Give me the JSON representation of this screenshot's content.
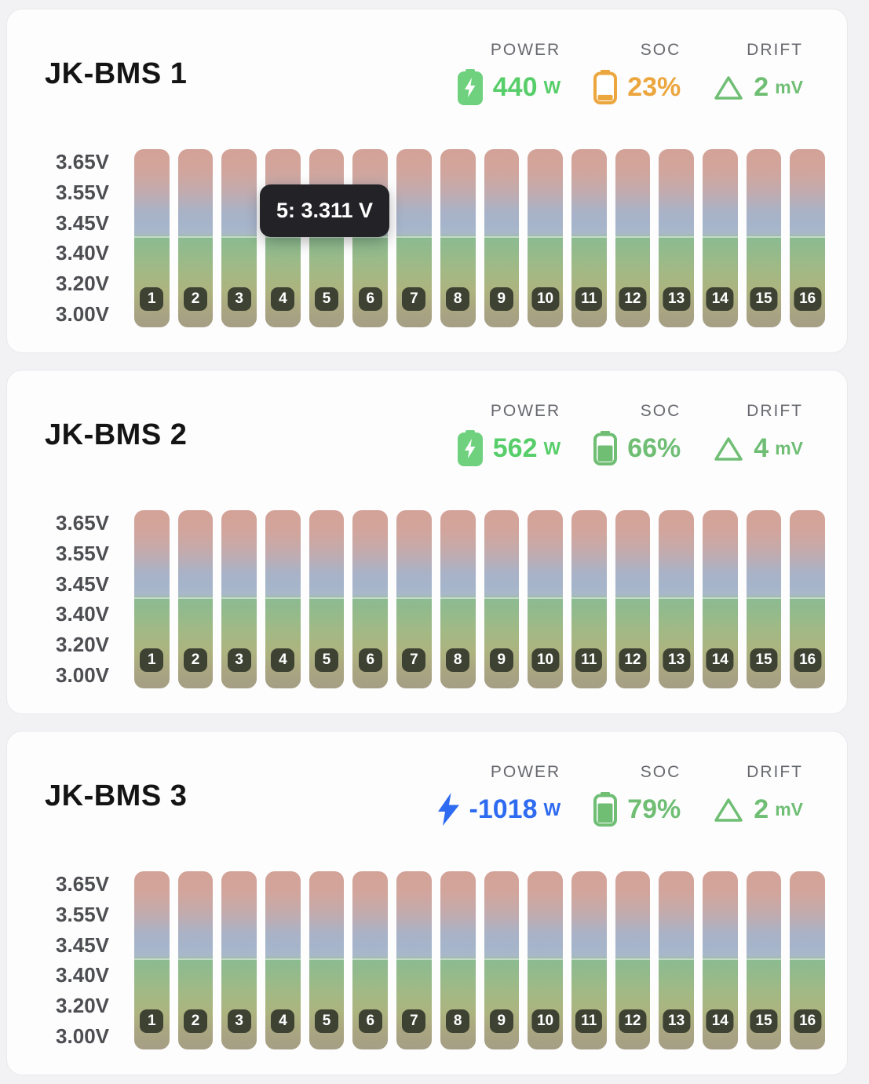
{
  "page": {
    "background": "#f2f2f4"
  },
  "cards": [
    {
      "title": "JK-BMS 1",
      "stats": {
        "power": {
          "label": "POWER",
          "value": "440",
          "unit": "W",
          "color": "#57ce69",
          "icon": "battery-charging",
          "icon_color": "#6fd17e"
        },
        "soc": {
          "label": "SOC",
          "value": "23%",
          "color": "#eca63e",
          "icon": "battery-level",
          "level": 0.23
        },
        "drift": {
          "label": "DRIFT",
          "value": "2",
          "unit": "mV",
          "color": "#6fbe74",
          "icon": "triangle-outline"
        }
      },
      "tooltip": {
        "text": "5: 3.311 V"
      },
      "chart": {
        "y_ticks": [
          "3.65V",
          "3.55V",
          "3.45V",
          "3.40V",
          "3.20V",
          "3.00V"
        ],
        "cells": [
          1,
          2,
          3,
          4,
          5,
          6,
          7,
          8,
          9,
          10,
          11,
          12,
          13,
          14,
          15,
          16
        ],
        "fill_percent": 48.8
      }
    },
    {
      "title": "JK-BMS 2",
      "stats": {
        "power": {
          "label": "POWER",
          "value": "562",
          "unit": "W",
          "color": "#57ce69",
          "icon": "battery-charging",
          "icon_color": "#6fd17e"
        },
        "soc": {
          "label": "SOC",
          "value": "66%",
          "color": "#6fbe74",
          "icon": "battery-level",
          "level": 0.66
        },
        "drift": {
          "label": "DRIFT",
          "value": "4",
          "unit": "mV",
          "color": "#6fbe74",
          "icon": "triangle-outline"
        }
      },
      "chart": {
        "y_ticks": [
          "3.65V",
          "3.55V",
          "3.45V",
          "3.40V",
          "3.20V",
          "3.00V"
        ],
        "cells": [
          1,
          2,
          3,
          4,
          5,
          6,
          7,
          8,
          9,
          10,
          11,
          12,
          13,
          14,
          15,
          16
        ],
        "fill_percent": 48.8
      }
    },
    {
      "title": "JK-BMS 3",
      "stats": {
        "power": {
          "label": "POWER",
          "value": "-1018",
          "unit": "W",
          "color": "#2e6bf0",
          "icon": "lightning-bolt",
          "icon_color": "#2e6bf0"
        },
        "soc": {
          "label": "SOC",
          "value": "79%",
          "color": "#6fbe74",
          "icon": "battery-level",
          "level": 0.79
        },
        "drift": {
          "label": "DRIFT",
          "value": "2",
          "unit": "mV",
          "color": "#6fbe74",
          "icon": "triangle-outline"
        }
      },
      "chart": {
        "y_ticks": [
          "3.65V",
          "3.55V",
          "3.45V",
          "3.40V",
          "3.20V",
          "3.00V"
        ],
        "cells": [
          1,
          2,
          3,
          4,
          5,
          6,
          7,
          8,
          9,
          10,
          11,
          12,
          13,
          14,
          15,
          16
        ],
        "fill_percent": 48.8
      }
    }
  ],
  "chart_data": [
    {
      "type": "bar",
      "title": "JK-BMS 1 cell voltages",
      "categories": [
        1,
        2,
        3,
        4,
        5,
        6,
        7,
        8,
        9,
        10,
        11,
        12,
        13,
        14,
        15,
        16
      ],
      "values": [
        3.31,
        3.31,
        3.31,
        3.31,
        3.311,
        3.31,
        3.31,
        3.31,
        3.31,
        3.31,
        3.31,
        3.31,
        3.31,
        3.31,
        3.31,
        3.31
      ],
      "y_tick_labels": [
        "3.65V",
        "3.55V",
        "3.45V",
        "3.40V",
        "3.20V",
        "3.00V"
      ],
      "ylim": [
        3.0,
        3.7
      ],
      "annotations": [
        "5: 3.311 V"
      ]
    },
    {
      "type": "bar",
      "title": "JK-BMS 2 cell voltages",
      "categories": [
        1,
        2,
        3,
        4,
        5,
        6,
        7,
        8,
        9,
        10,
        11,
        12,
        13,
        14,
        15,
        16
      ],
      "values": [
        3.31,
        3.31,
        3.31,
        3.31,
        3.31,
        3.31,
        3.31,
        3.31,
        3.31,
        3.31,
        3.31,
        3.31,
        3.31,
        3.31,
        3.31,
        3.31
      ],
      "y_tick_labels": [
        "3.65V",
        "3.55V",
        "3.45V",
        "3.40V",
        "3.20V",
        "3.00V"
      ],
      "ylim": [
        3.0,
        3.7
      ]
    },
    {
      "type": "bar",
      "title": "JK-BMS 3 cell voltages",
      "categories": [
        1,
        2,
        3,
        4,
        5,
        6,
        7,
        8,
        9,
        10,
        11,
        12,
        13,
        14,
        15,
        16
      ],
      "values": [
        3.31,
        3.31,
        3.31,
        3.31,
        3.31,
        3.31,
        3.31,
        3.31,
        3.31,
        3.31,
        3.31,
        3.31,
        3.31,
        3.31,
        3.31,
        3.31
      ],
      "y_tick_labels": [
        "3.65V",
        "3.55V",
        "3.45V",
        "3.40V",
        "3.20V",
        "3.00V"
      ],
      "ylim": [
        3.0,
        3.7
      ]
    }
  ]
}
